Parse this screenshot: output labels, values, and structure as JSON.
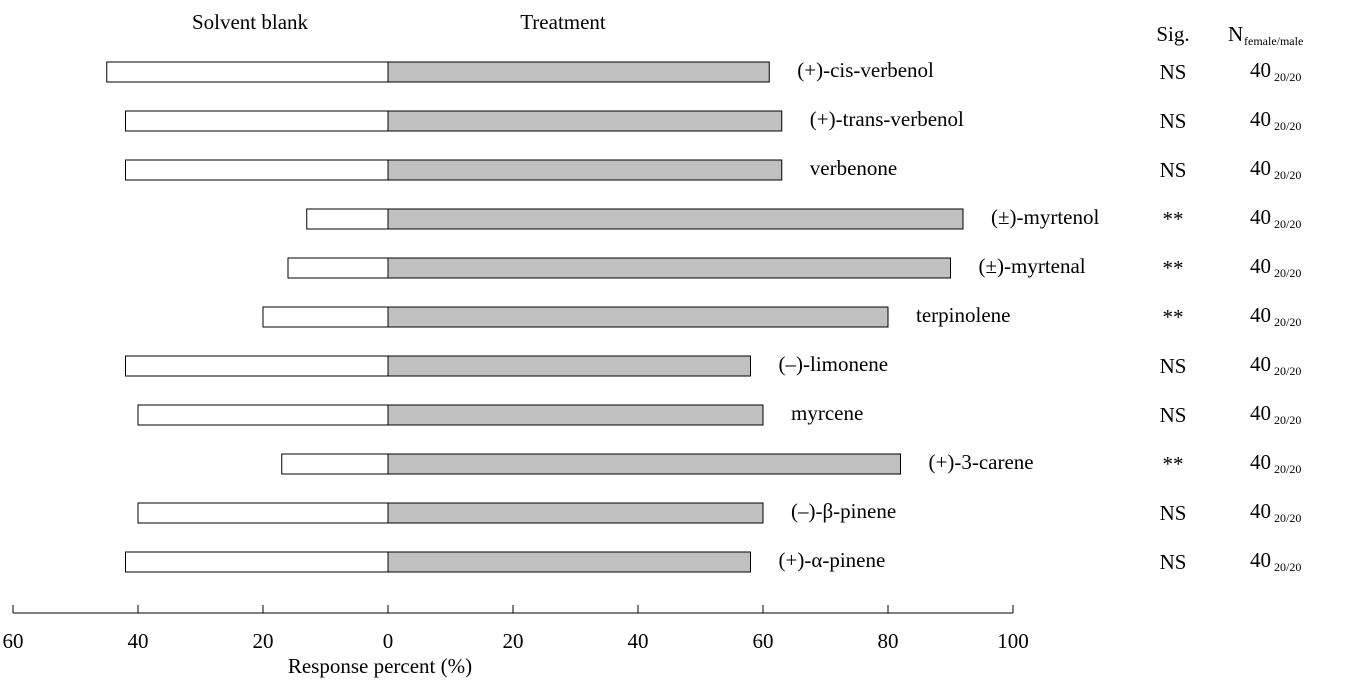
{
  "chart_data": {
    "type": "diverging-bar",
    "categories": [
      "(+)-cis-verbenol",
      "(+)-trans-verbenol",
      "verbenone",
      "(±)-myrtenol",
      "(±)-myrtenal",
      "terpinolene",
      "(–)-limonene",
      "myrcene",
      "(+)-3-carene",
      "(–)-β-pinene",
      "(+)-α-pinene"
    ],
    "series": [
      {
        "name": "Solvent blank",
        "color": "#ffffff",
        "values": [
          -45,
          -42,
          -42,
          -13,
          -16,
          -20,
          -42,
          -40,
          -17,
          -40,
          -42
        ]
      },
      {
        "name": "Treatment",
        "color": "#c0c0c0",
        "values": [
          61,
          63,
          63,
          92,
          90,
          80,
          58,
          60,
          82,
          60,
          58
        ]
      }
    ],
    "xlim": [
      -60,
      100
    ],
    "xticks": [
      {
        "value": -60,
        "label": "60"
      },
      {
        "value": -40,
        "label": "40"
      },
      {
        "value": -20,
        "label": "20"
      },
      0,
      20,
      40,
      60,
      80,
      100
    ],
    "xlabel": "Response percent (%)",
    "sig_header": "Sig.",
    "significance": [
      "NS",
      "NS",
      "NS",
      "**",
      "**",
      "**",
      "NS",
      "NS",
      "**",
      "NS",
      "NS"
    ],
    "n_header": "N",
    "n_header_sub": "female/male",
    "n": [
      40,
      40,
      40,
      40,
      40,
      40,
      40,
      40,
      40,
      40,
      40
    ],
    "n_sub": [
      "20/20",
      "20/20",
      "20/20",
      "20/20",
      "20/20",
      "20/20",
      "20/20",
      "20/20",
      "20/20",
      "20/20",
      "20/20"
    ]
  }
}
